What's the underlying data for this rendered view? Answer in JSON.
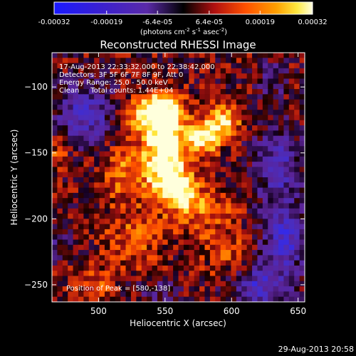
{
  "chart_data": {
    "type": "heatmap",
    "title": "Reconstructed RHESSI Image",
    "xlabel": "Heliocentric X (arcsec)",
    "ylabel": "Heliocentric Y (arcsec)",
    "xlim": [
      465,
      655
    ],
    "ylim": [
      -263,
      -74
    ],
    "x_ticks": [
      500,
      550,
      600,
      650
    ],
    "y_ticks": [
      -100,
      -150,
      -200,
      -250
    ],
    "colorbar": {
      "ticks": [
        "-0.00032",
        "-0.00019",
        "-6.4e-05",
        "6.4e-05",
        "0.00019",
        "0.00032"
      ],
      "tick_values": [
        -0.00032,
        -0.00019,
        -6.4e-05,
        6.4e-05,
        0.00019,
        0.00032
      ],
      "range": [
        -0.00032,
        0.00032
      ],
      "units_label": "(photons cm^-2 s^-1 asec^-2)"
    },
    "annotations": {
      "time_range": "17-Aug-2013 22:33:32.000 to 22:38:42.000",
      "detectors": "Detectors: 3F 5F 6F 7F 8F 9F, Att 0",
      "energy": "Energy Range: 25.0 - 50.0 keV",
      "clean": "Clean     Total counts: 1.44E+04",
      "peak": "Position of Peak = [580,-138]"
    },
    "footer_date": "29-Aug-2013 20:58",
    "peak_position": [
      580,
      -138
    ],
    "grid": false,
    "legend": "colorbar-top"
  }
}
